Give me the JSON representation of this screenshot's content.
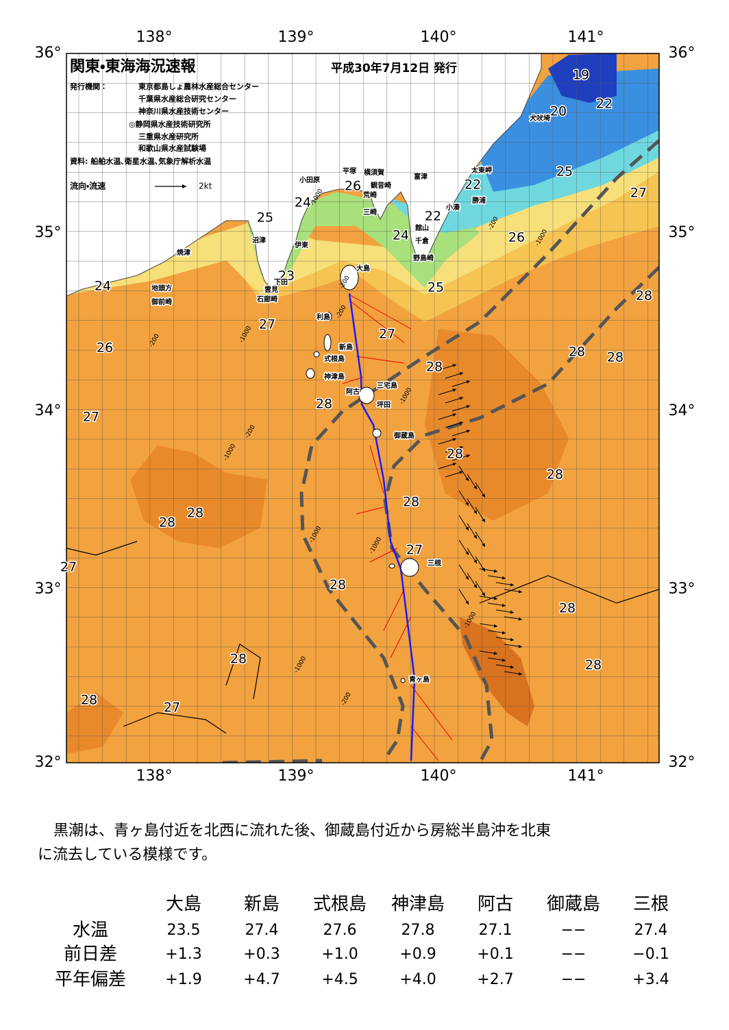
{
  "header": {
    "title": "関東・東海海況速報",
    "date": "平成30年7月12日 発行",
    "issuer_label": "発行機関：",
    "issuers": [
      "東京都島しょ農林水産総合センター",
      "千葉県水産総合研究センター",
      "神奈川県水産技術センター",
      "◎静岡県水産技術研究所",
      "三重県水産研究所",
      "和歌山県水産試験場"
    ],
    "source": "資料: 船舶水温､衛星水温､気象庁解析水温",
    "legend_label": "流向・流速",
    "legend_speed": "2kt"
  },
  "map": {
    "lon_labels": [
      "138°",
      "139°",
      "140°",
      "141°"
    ],
    "lat_labels": [
      "36°",
      "35°",
      "34°",
      "33°",
      "32°"
    ],
    "temperature_labels": [
      19,
      20,
      22,
      25,
      22,
      27,
      26,
      24,
      25,
      22,
      24,
      26,
      24,
      25,
      28,
      27,
      27,
      26,
      28,
      28,
      28,
      28,
      27,
      28,
      28,
      28,
      28,
      28,
      27,
      27,
      28,
      28,
      28,
      28,
      28,
      27,
      23
    ],
    "depth_labels": [
      -1000,
      -200,
      -200,
      -200,
      -1000,
      -200,
      -1000,
      -1000,
      -200,
      -1000,
      -1000,
      -1000,
      -1000,
      -1000,
      -200
    ],
    "place_names": [
      "大島",
      "利島",
      "新島",
      "式根島",
      "神津島",
      "三宅島",
      "阿古",
      "坪田",
      "御蔵島",
      "三根",
      "青ヶ島",
      "小田原",
      "平塚",
      "横須賀",
      "観音崎",
      "荒崎",
      "三崎",
      "富津",
      "館山",
      "千倉",
      "野島崎",
      "太東岬",
      "勝浦",
      "小湊",
      "犬吠埼",
      "沼津",
      "伊東",
      "焼津",
      "地頭方",
      "御前崎",
      "雲見",
      "石廊崎",
      "下田"
    ]
  },
  "comment": {
    "lines": [
      "黒潮は、青ヶ島付近を北西に流れた後、御蔵島付近から房総半島沖を北東",
      "に流去している模様です。"
    ]
  },
  "table": {
    "columns": [
      "大島",
      "新島",
      "式根島",
      "神津島",
      "阿古",
      "御蔵島",
      "三根"
    ],
    "rows": [
      {
        "label": "水温",
        "values": [
          "23.5",
          "27.4",
          "27.6",
          "27.8",
          "27.1",
          "−−",
          "27.4"
        ]
      },
      {
        "label": "前日差",
        "values": [
          "+1.3",
          "+0.3",
          "+1.0",
          "+0.9",
          "+0.1",
          "−−",
          "−0.1"
        ]
      },
      {
        "label": "平年偏差",
        "values": [
          "+1.9",
          "+4.7",
          "+4.5",
          "+4.0",
          "+2.7",
          "−−",
          "+3.4"
        ]
      }
    ]
  }
}
